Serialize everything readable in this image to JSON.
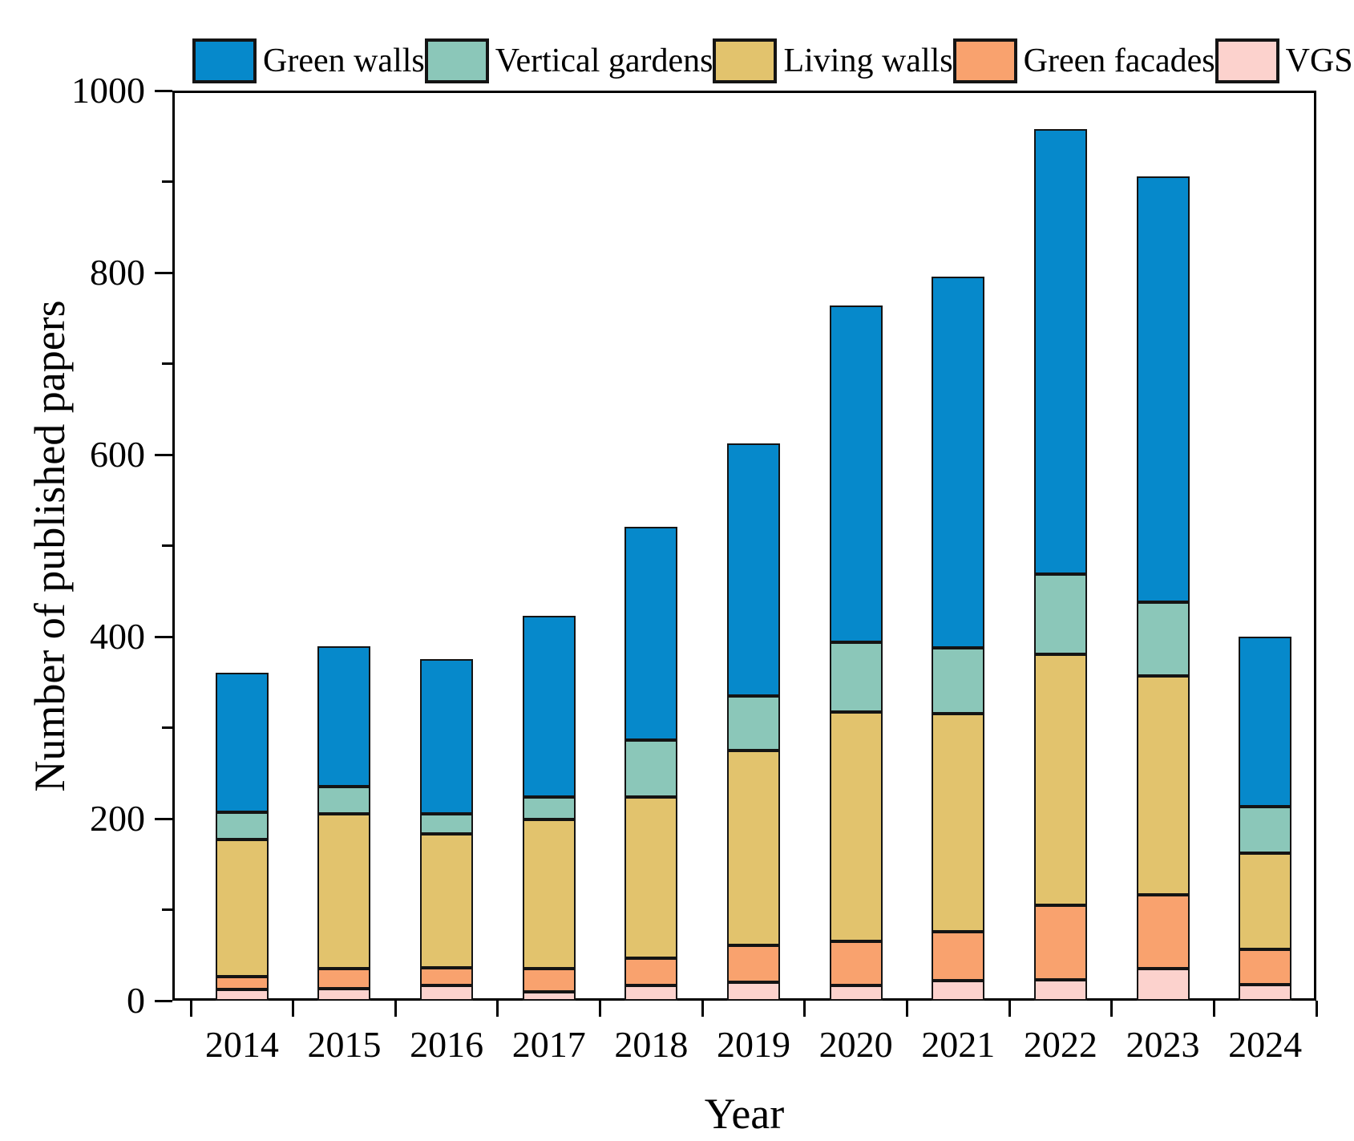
{
  "figure": {
    "background": "#ffffff",
    "frame_color": "#000000"
  },
  "chart_data": {
    "type": "bar",
    "stacked": true,
    "title": "",
    "xlabel": "Year",
    "ylabel": "Number of published papers",
    "ylim": [
      0,
      1000
    ],
    "grid": false,
    "categories": [
      "2014",
      "2015",
      "2016",
      "2017",
      "2018",
      "2019",
      "2020",
      "2021",
      "2022",
      "2023",
      "2024"
    ],
    "series": [
      {
        "name": "VGS",
        "color": "#fcd2cd",
        "values": [
          12,
          13,
          17,
          10,
          17,
          20,
          17,
          22,
          23,
          35,
          18
        ]
      },
      {
        "name": "Green facades",
        "color": "#f9a26e",
        "values": [
          14,
          22,
          19,
          25,
          30,
          41,
          48,
          54,
          82,
          81,
          38
        ]
      },
      {
        "name": "Living walls",
        "color": "#e2c36d",
        "values": [
          151,
          170,
          147,
          164,
          177,
          214,
          252,
          239,
          276,
          241,
          106
        ]
      },
      {
        "name": "Vertical gardens",
        "color": "#8bc7b9",
        "values": [
          30,
          30,
          22,
          25,
          62,
          60,
          77,
          73,
          88,
          81,
          51
        ]
      },
      {
        "name": "Green walls",
        "color": "#0689cb",
        "values": [
          153,
          154,
          170,
          199,
          235,
          277,
          370,
          408,
          489,
          468,
          187
        ]
      }
    ],
    "totals": [
      360,
      389,
      375,
      423,
      521,
      612,
      764,
      796,
      958,
      906,
      400
    ],
    "legend": {
      "position": "top",
      "entries": [
        "Green walls",
        "Vertical gardens",
        "Living walls",
        "Green facades",
        "VGS"
      ]
    },
    "y_axis": {
      "major_ticks": [
        {
          "value": 0,
          "label": "0"
        },
        {
          "value": 200,
          "label": "200"
        },
        {
          "value": 400,
          "label": "400"
        },
        {
          "value": 600,
          "label": "600"
        },
        {
          "value": 800,
          "label": "800"
        },
        {
          "value": 1000,
          "label": "1000"
        }
      ],
      "minor_ticks": [
        100,
        300,
        500,
        700,
        900
      ]
    }
  }
}
